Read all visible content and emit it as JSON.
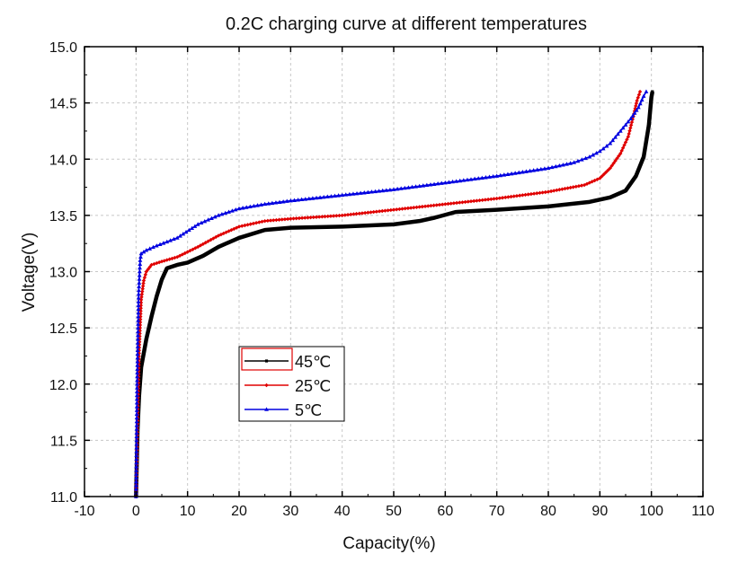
{
  "chart_data": {
    "type": "line",
    "title": "0.2C charging curve at different temperatures",
    "xlabel": "Capacity(%)",
    "ylabel": "Voltage(V)",
    "xlim": [
      -10,
      110
    ],
    "ylim": [
      11.0,
      15.0
    ],
    "xticks": [
      "-10",
      "0",
      "10",
      "20",
      "30",
      "40",
      "50",
      "60",
      "70",
      "80",
      "90",
      "100",
      "110"
    ],
    "yticks": [
      "11.0",
      "11.5",
      "12.0",
      "12.5",
      "13.0",
      "13.5",
      "14.0",
      "14.5",
      "15.0"
    ],
    "grid": true,
    "legend_position": "lower-left",
    "series": [
      {
        "name": "45℃",
        "color": "#000000",
        "marker": "square",
        "x": [
          0,
          0.3,
          0.6,
          1,
          2,
          3,
          4,
          5,
          6,
          8,
          10,
          13,
          16,
          20,
          25,
          30,
          40,
          50,
          55,
          58,
          62,
          70,
          80,
          88,
          92,
          95,
          97,
          98.5,
          99.5,
          100,
          100.2
        ],
        "y": [
          11.0,
          11.6,
          11.9,
          12.15,
          12.4,
          12.6,
          12.78,
          12.93,
          13.03,
          13.06,
          13.08,
          13.14,
          13.22,
          13.3,
          13.37,
          13.39,
          13.4,
          13.42,
          13.45,
          13.48,
          13.53,
          13.55,
          13.58,
          13.62,
          13.66,
          13.72,
          13.85,
          14.02,
          14.3,
          14.55,
          14.6
        ]
      },
      {
        "name": "25℃",
        "color": "#e00000",
        "marker": "diamond",
        "x": [
          0,
          0.3,
          0.6,
          1,
          1.5,
          2,
          3,
          5,
          8,
          12,
          16,
          20,
          25,
          30,
          40,
          50,
          60,
          70,
          80,
          87,
          90,
          92,
          94,
          95.5,
          96.5,
          97.2,
          97.8
        ],
        "y": [
          11.0,
          11.7,
          12.3,
          12.75,
          12.92,
          13.0,
          13.06,
          13.09,
          13.13,
          13.22,
          13.32,
          13.4,
          13.45,
          13.47,
          13.5,
          13.55,
          13.6,
          13.65,
          13.71,
          13.77,
          13.83,
          13.92,
          14.05,
          14.2,
          14.38,
          14.52,
          14.6
        ]
      },
      {
        "name": "5℃",
        "color": "#0000e0",
        "marker": "triangle",
        "x": [
          0,
          0.2,
          0.5,
          0.8,
          1,
          2,
          4,
          8,
          12,
          16,
          20,
          25,
          30,
          40,
          50,
          60,
          70,
          80,
          85,
          88,
          90,
          92,
          94,
          96,
          97.5,
          98.5,
          99
        ],
        "y": [
          11.0,
          12.0,
          12.8,
          13.1,
          13.16,
          13.19,
          13.23,
          13.3,
          13.42,
          13.5,
          13.56,
          13.6,
          13.63,
          13.68,
          13.73,
          13.79,
          13.85,
          13.92,
          13.97,
          14.02,
          14.07,
          14.14,
          14.25,
          14.36,
          14.46,
          14.56,
          14.6
        ]
      }
    ]
  }
}
